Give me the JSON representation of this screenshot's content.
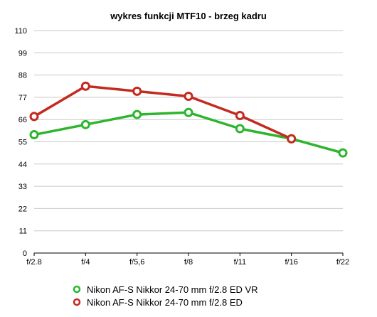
{
  "chart_data": {
    "type": "line",
    "title": "wykres funkcji MTF10 - brzeg kadru",
    "categories": [
      "f/2.8",
      "f/4",
      "f/5,6",
      "f/8",
      "f/11",
      "f/16",
      "f/22"
    ],
    "yticks": [
      "0",
      "11",
      "22",
      "33",
      "44",
      "55",
      "66",
      "77",
      "88",
      "99",
      "110"
    ],
    "ylim": [
      0,
      110
    ],
    "grid": true,
    "legend_position": "bottom",
    "series": [
      {
        "name": "Nikon AF-S Nikkor 24-70 mm f/2.8 ED VR",
        "color": "#2db52d",
        "values": [
          58.5,
          63.5,
          68.5,
          69.5,
          61.5,
          56.5,
          49.5
        ]
      },
      {
        "name": "Nikon AF-S Nikkor 24-70 mm f/2.8 ED",
        "color": "#c42a1f",
        "values": [
          67.5,
          82.5,
          80,
          77.5,
          68,
          56.5,
          null
        ]
      }
    ]
  }
}
